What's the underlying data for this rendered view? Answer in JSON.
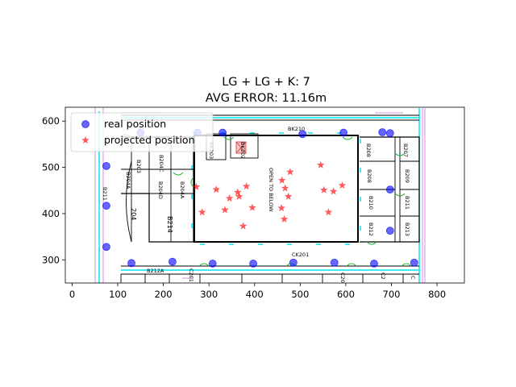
{
  "chart_data": {
    "type": "scatter",
    "title_lines": [
      "LG + LG + K: 7",
      "AVG ERROR: 11.16m"
    ],
    "xlim": [
      -15,
      860
    ],
    "ylim": [
      250,
      630
    ],
    "xticks": [
      0,
      100,
      200,
      300,
      400,
      500,
      600,
      700,
      800
    ],
    "yticks": [
      300,
      400,
      500,
      600
    ],
    "legend_position": "upper-left",
    "background": "floor plan image",
    "series": [
      {
        "name": "real position",
        "marker": "circle",
        "color": "#0000ff",
        "points": [
          [
            75,
            503
          ],
          [
            75,
            417
          ],
          [
            75,
            328
          ],
          [
            130,
            293
          ],
          [
            220,
            296
          ],
          [
            308,
            292
          ],
          [
            397,
            292
          ],
          [
            485,
            294
          ],
          [
            575,
            294
          ],
          [
            662,
            292
          ],
          [
            750,
            294
          ],
          [
            150,
            575
          ],
          [
            275,
            575
          ],
          [
            330,
            575
          ],
          [
            505,
            572
          ],
          [
            595,
            575
          ],
          [
            680,
            576
          ],
          [
            697,
            574
          ],
          [
            697,
            452
          ],
          [
            697,
            363
          ]
        ]
      },
      {
        "name": "projected position",
        "marker": "star",
        "color": "#ff0000",
        "points": [
          [
            272,
            458
          ],
          [
            285,
            403
          ],
          [
            316,
            452
          ],
          [
            335,
            408
          ],
          [
            345,
            433
          ],
          [
            363,
            446
          ],
          [
            366,
            437
          ],
          [
            375,
            373
          ],
          [
            382,
            459
          ],
          [
            395,
            413
          ],
          [
            459,
            412
          ],
          [
            460,
            472
          ],
          [
            465,
            388
          ],
          [
            467,
            455
          ],
          [
            474,
            437
          ],
          [
            478,
            490
          ],
          [
            545,
            505
          ],
          [
            552,
            451
          ],
          [
            562,
            403
          ],
          [
            573,
            448
          ],
          [
            592,
            461
          ]
        ]
      }
    ],
    "floorplan_labels": {
      "rooms": [
        "B203",
        "B204C",
        "B204A",
        "B204D",
        "B204A",
        "B211",
        "204",
        "B214",
        "B208",
        "B208",
        "B210",
        "B207",
        "B209",
        "B211",
        "B212",
        "B213",
        "C201",
        "C20",
        "C2",
        "C",
        "B212A"
      ],
      "center_text": "OPEN TO BELOW",
      "corridor_top": "BK210",
      "corridor_bottom": "CK201",
      "stair": "BK203",
      "elevator": "BK202"
    }
  }
}
